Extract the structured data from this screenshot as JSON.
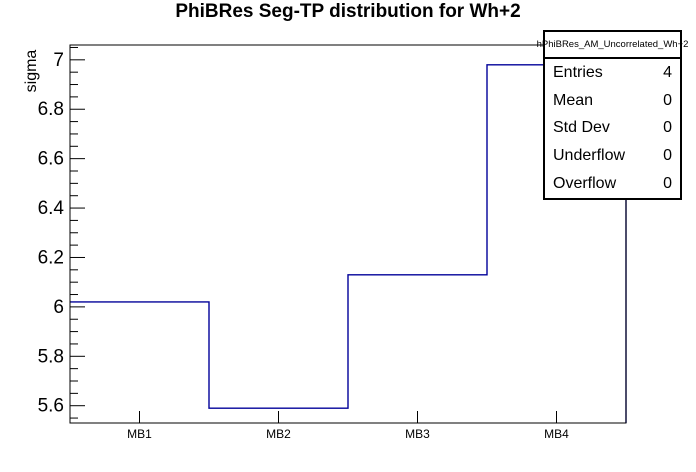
{
  "chart_data": {
    "type": "bar",
    "style": "step-outline-histogram",
    "title": "PhiBRes Seg-TP distribution for Wh+2",
    "xlabel": "",
    "ylabel": "sigma",
    "categories": [
      "MB1",
      "MB2",
      "MB3",
      "MB4"
    ],
    "values": [
      6.02,
      5.59,
      6.13,
      6.98
    ],
    "ylim": [
      5.53,
      7.06
    ],
    "yticks": [
      5.6,
      5.8,
      6.0,
      6.2,
      6.4,
      6.6,
      6.8,
      7.0
    ],
    "ytick_labels": [
      "5.6",
      "5.8",
      "6",
      "6.2",
      "6.4",
      "6.6",
      "6.8",
      "7"
    ],
    "minor_tick_step": 0.05,
    "grid": "off",
    "legend": "none",
    "line_color": "#000099",
    "axis_color": "#000000",
    "background_color": "#ffffff"
  },
  "stats_box": {
    "header": "hPhiBRes_AM_Uncorrelated_Wh+2",
    "rows": [
      {
        "label": "Entries",
        "value": "4"
      },
      {
        "label": "Mean",
        "value": "0"
      },
      {
        "label": "Std Dev",
        "value": "0"
      },
      {
        "label": "Underflow",
        "value": "0"
      },
      {
        "label": "Overflow",
        "value": "0"
      }
    ]
  }
}
